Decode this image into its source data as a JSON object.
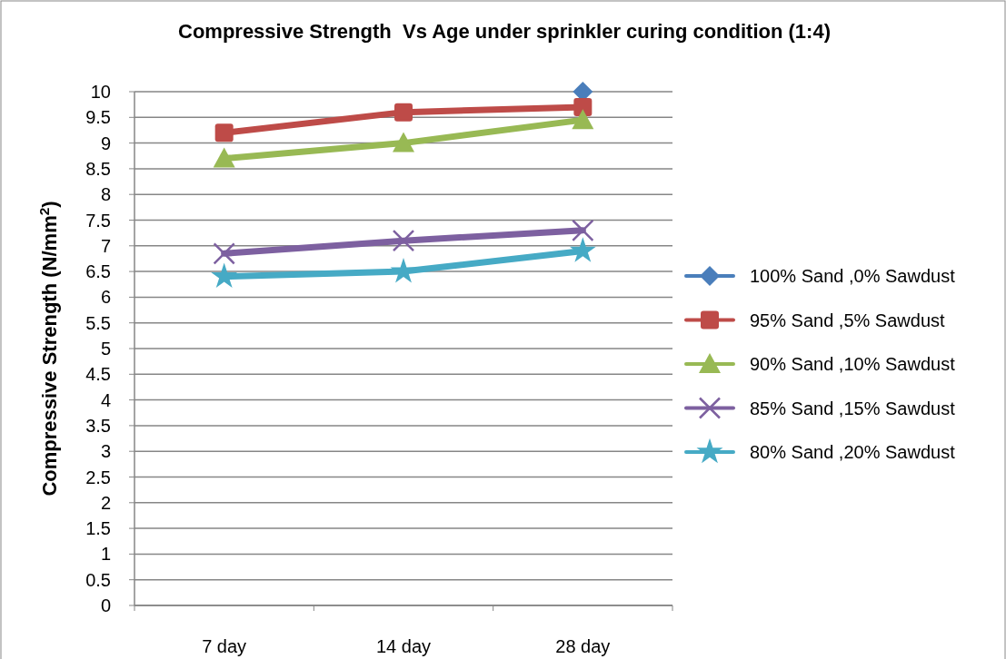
{
  "chart_data": {
    "type": "line",
    "title": "Compressive Strength  Vs Age under sprinkler curing condition (1:4)",
    "ylabel": "Compressive Strength (N/mm$^{2}$)",
    "categories": [
      "7 day",
      "14 day",
      "28 day"
    ],
    "series": [
      {
        "name": "100% Sand ,0% Sawdust",
        "color": "#4a7ebb",
        "marker": "diamond",
        "values": [
          null,
          null,
          10
        ]
      },
      {
        "name": "95% Sand ,5% Sawdust",
        "color": "#be4b48",
        "marker": "square",
        "values": [
          9.2,
          9.6,
          9.7
        ]
      },
      {
        "name": "90% Sand ,10% Sawdust",
        "color": "#98b954",
        "marker": "triangle",
        "values": [
          8.7,
          9.0,
          9.45
        ]
      },
      {
        "name": "85% Sand ,15% Sawdust",
        "color": "#7d60a0",
        "marker": "cross",
        "values": [
          6.85,
          7.1,
          7.3
        ]
      },
      {
        "name": "80% Sand ,20% Sawdust",
        "color": "#46aac5",
        "marker": "star",
        "values": [
          6.4,
          6.5,
          6.9
        ]
      }
    ],
    "ylim": [
      0,
      10
    ],
    "yticks": [
      0,
      0.5,
      1,
      1.5,
      2,
      2.5,
      3,
      3.5,
      4,
      4.5,
      5,
      5.5,
      6,
      6.5,
      7,
      7.5,
      8,
      8.5,
      9,
      9.5,
      10
    ],
    "grid": "y",
    "legend": "right"
  }
}
